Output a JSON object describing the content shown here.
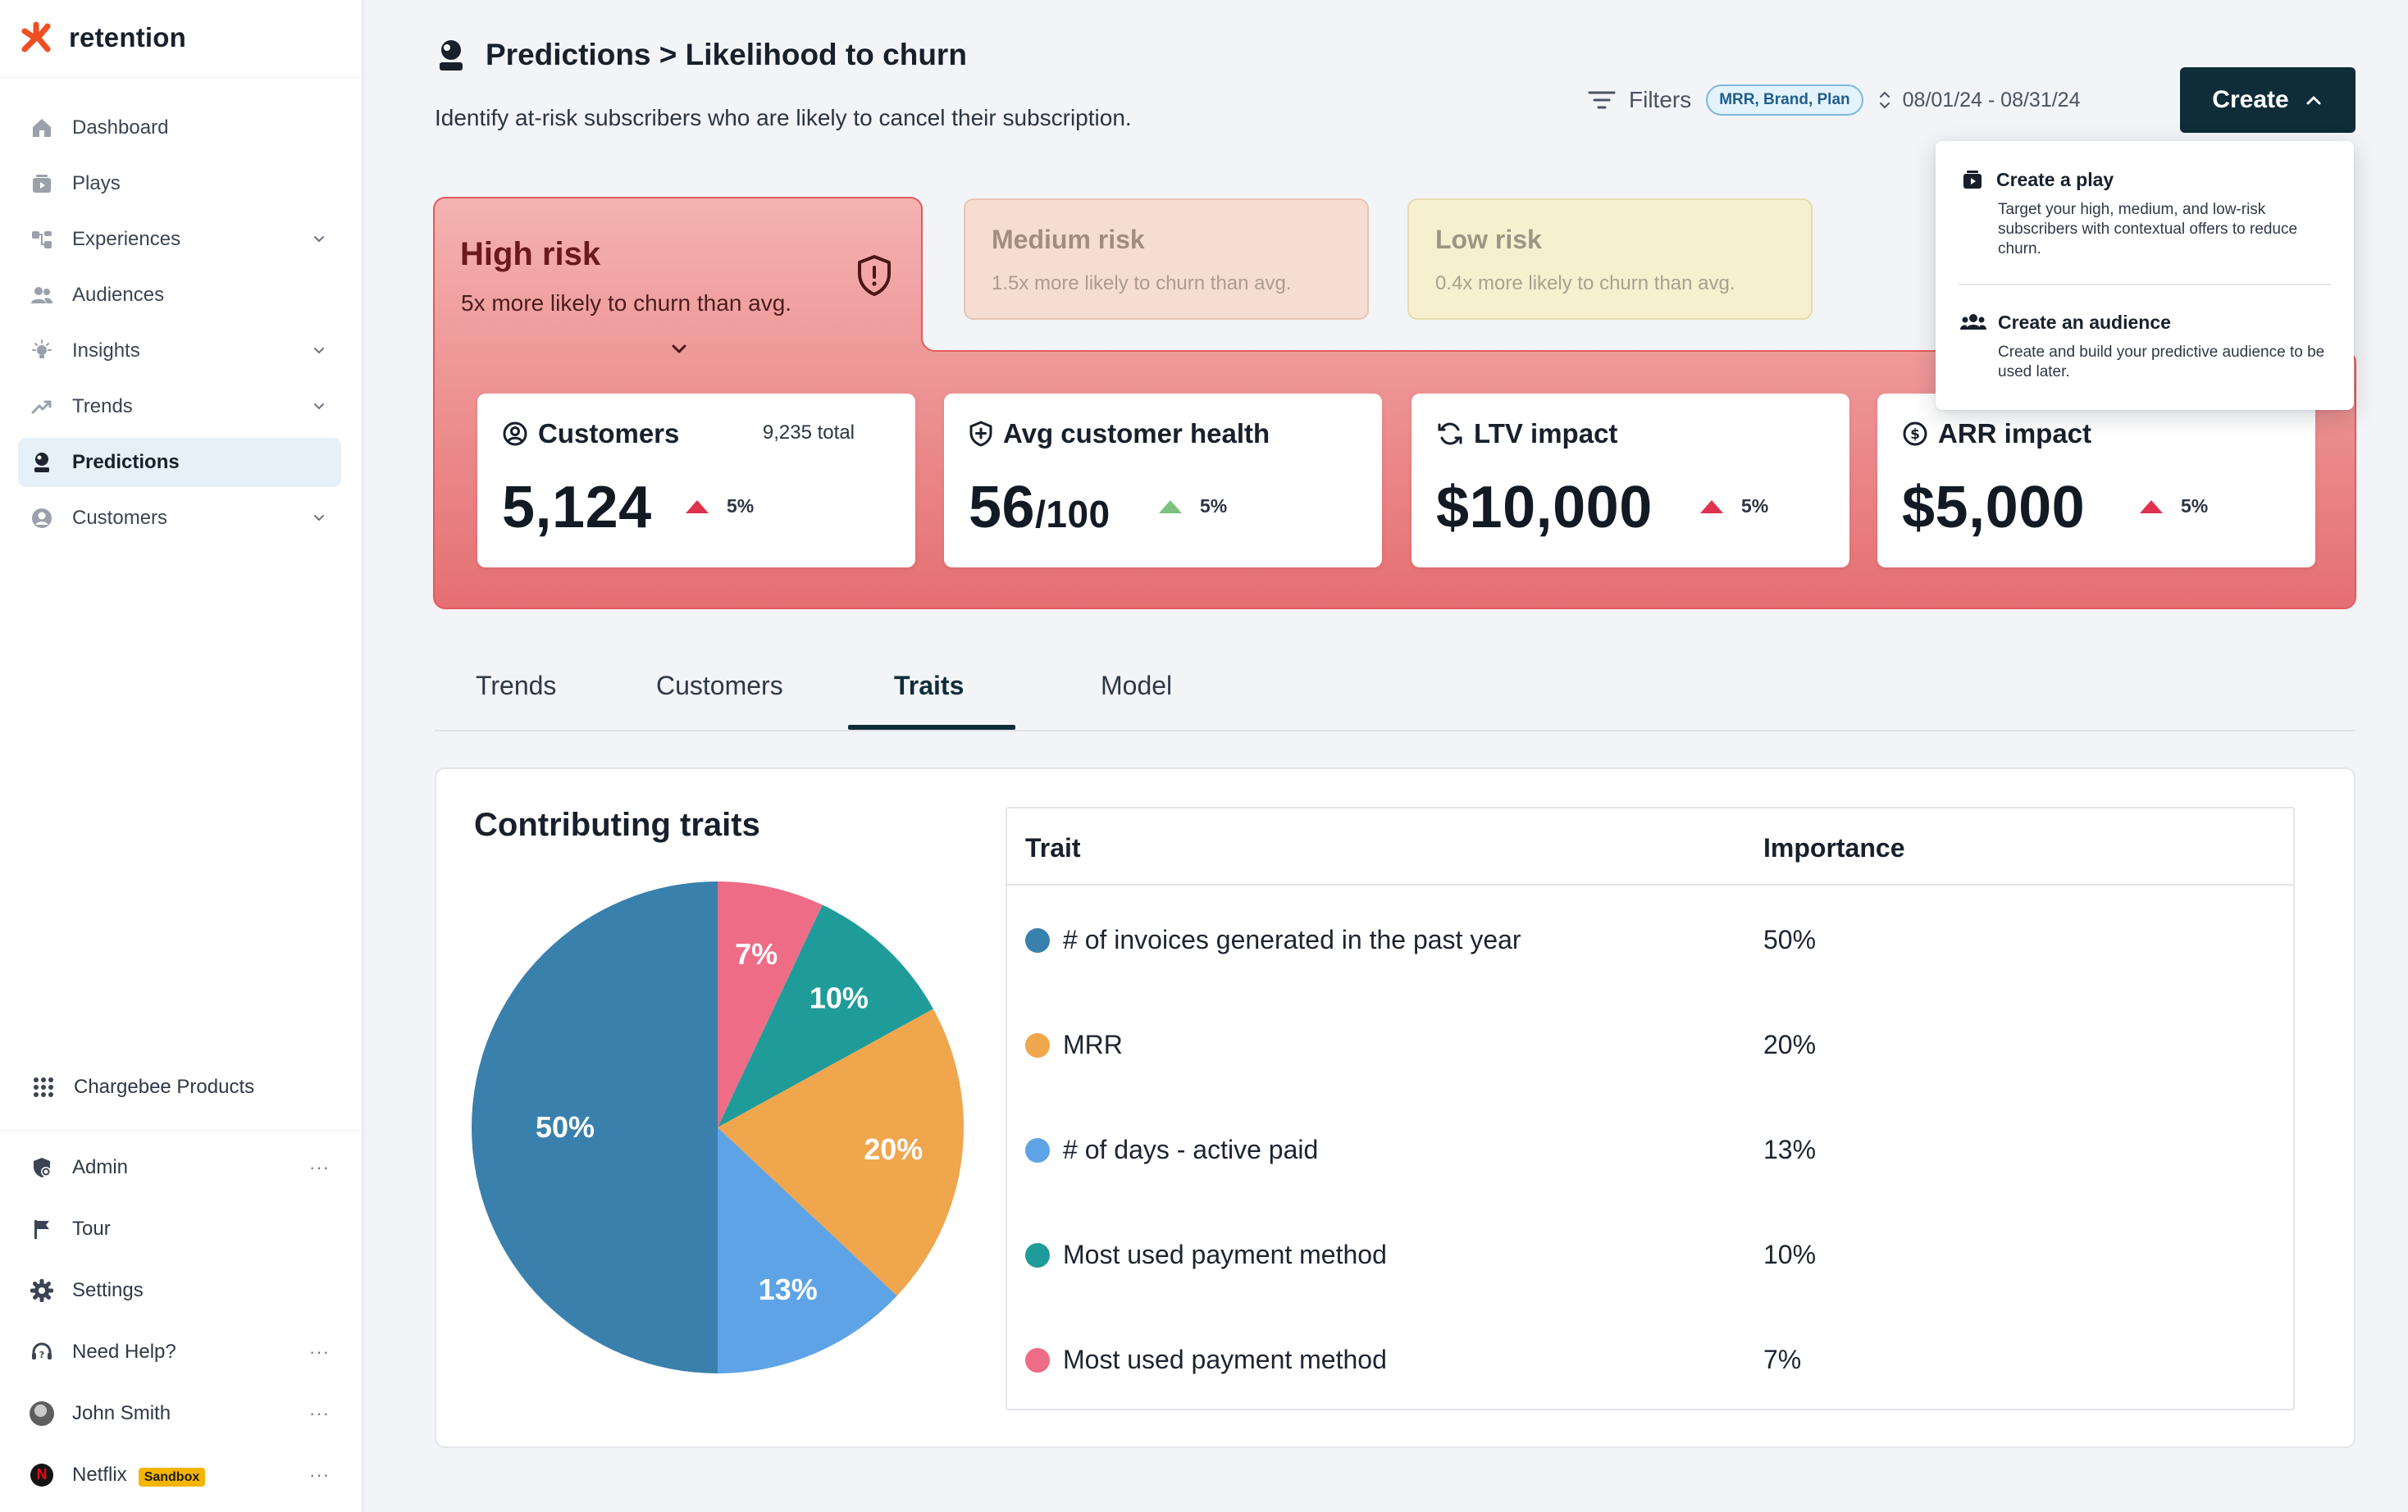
{
  "brand": {
    "name": "retention",
    "accent": "#f04e23"
  },
  "sidebar": {
    "items": [
      {
        "label": "Dashboard",
        "icon": "home-icon",
        "chevron": false,
        "active": false
      },
      {
        "label": "Plays",
        "icon": "plays-icon",
        "chevron": false,
        "active": false
      },
      {
        "label": "Experiences",
        "icon": "experiences-icon",
        "chevron": true,
        "active": false
      },
      {
        "label": "Audiences",
        "icon": "audiences-icon",
        "chevron": false,
        "active": false
      },
      {
        "label": "Insights",
        "icon": "insights-icon",
        "chevron": true,
        "active": false
      },
      {
        "label": "Trends",
        "icon": "trends-icon",
        "chevron": true,
        "active": false
      },
      {
        "label": "Predictions",
        "icon": "predictions-icon",
        "chevron": false,
        "active": true
      },
      {
        "label": "Customers",
        "icon": "customers-icon",
        "chevron": true,
        "active": false
      }
    ],
    "products_label": "Chargebee Products",
    "bottom": [
      {
        "label": "Admin",
        "icon": "admin-icon",
        "more": "···"
      },
      {
        "label": "Tour",
        "icon": "flag-icon",
        "more": ""
      },
      {
        "label": "Settings",
        "icon": "gear-icon",
        "more": ""
      },
      {
        "label": "Need Help?",
        "icon": "help-icon",
        "more": "···"
      },
      {
        "label": "John Smith",
        "icon": "avatar",
        "more": "···"
      },
      {
        "label": "Netflix",
        "icon": "netflix-logo",
        "more": "···",
        "badge": "Sandbox"
      }
    ]
  },
  "header": {
    "title": "Predictions > Likelihood to churn",
    "subtitle": "Identify at-risk subscribers who are likely to cancel their subscription.",
    "filters_label": "Filters",
    "filter_chip": "MRR, Brand, Plan",
    "date_range": "08/01/24 - 08/31/24",
    "create_label": "Create"
  },
  "create_menu": [
    {
      "title": "Create a play",
      "description": "Target your high, medium, and low-risk subscribers with contextual offers to reduce churn."
    },
    {
      "title": "Create an audience",
      "description": "Create and build your predictive audience to be used later."
    }
  ],
  "risk_tabs": {
    "high": {
      "title": "High risk",
      "subtitle": "5x more likely to churn than avg.",
      "color": "#f3b0ae"
    },
    "medium": {
      "title": "Medium risk",
      "subtitle": "1.5x more likely to churn than avg.",
      "color": "#f5ddd2"
    },
    "low": {
      "title": "Low risk",
      "subtitle": "0.4x more likely to churn than avg.",
      "color": "#f6f0cf"
    }
  },
  "metrics": [
    {
      "title": "Customers",
      "icon": "user-circle-icon",
      "extra": "9,235 total",
      "value": "5,124",
      "value_suffix": "",
      "delta": "5%",
      "direction": "up",
      "delta_color": "#e0314e"
    },
    {
      "title": "Avg customer health",
      "icon": "shield-plus-icon",
      "extra": "",
      "value": "56",
      "value_suffix": "/100",
      "delta": "5%",
      "direction": "up",
      "delta_color": "#7cc27e"
    },
    {
      "title": "LTV impact",
      "icon": "refresh-icon",
      "extra": "",
      "value": "$10,000",
      "value_suffix": "",
      "delta": "5%",
      "direction": "up",
      "delta_color": "#e0314e"
    },
    {
      "title": "ARR impact",
      "icon": "dollar-icon",
      "extra": "",
      "value": "$5,000",
      "value_suffix": "",
      "delta": "5%",
      "direction": "up",
      "delta_color": "#e0314e"
    }
  ],
  "tabs": [
    {
      "label": "Trends",
      "active": false
    },
    {
      "label": "Customers",
      "active": false
    },
    {
      "label": "Traits",
      "active": true
    },
    {
      "label": "Model",
      "active": false
    }
  ],
  "traits": {
    "title": "Contributing traits",
    "table_headers": {
      "trait": "Trait",
      "importance": "Importance"
    },
    "rows": [
      {
        "trait": "# of invoices generated in the past year",
        "importance": "50%",
        "color": "#3a80ad"
      },
      {
        "trait": "MRR",
        "importance": "20%",
        "color": "#f0a64d"
      },
      {
        "trait": "# of days - active paid",
        "importance": "13%",
        "color": "#5ea3e6"
      },
      {
        "trait": "Most used payment method",
        "importance": "10%",
        "color": "#1f9c9a"
      },
      {
        "trait": "Most used payment method",
        "importance": "7%",
        "color": "#ee6c86"
      }
    ]
  },
  "chart_data": {
    "type": "pie",
    "categories": [
      "# of invoices generated in the past year",
      "MRR",
      "# of days - active paid",
      "Most used payment method",
      "Most used payment method"
    ],
    "values": [
      50,
      20,
      13,
      10,
      7
    ],
    "labels": [
      "50%",
      "20%",
      "13%",
      "10%",
      "7%"
    ],
    "colors": [
      "#3a80ad",
      "#f0a64d",
      "#5ea3e6",
      "#1f9c9a",
      "#ee6c86"
    ],
    "title": "Contributing traits"
  }
}
